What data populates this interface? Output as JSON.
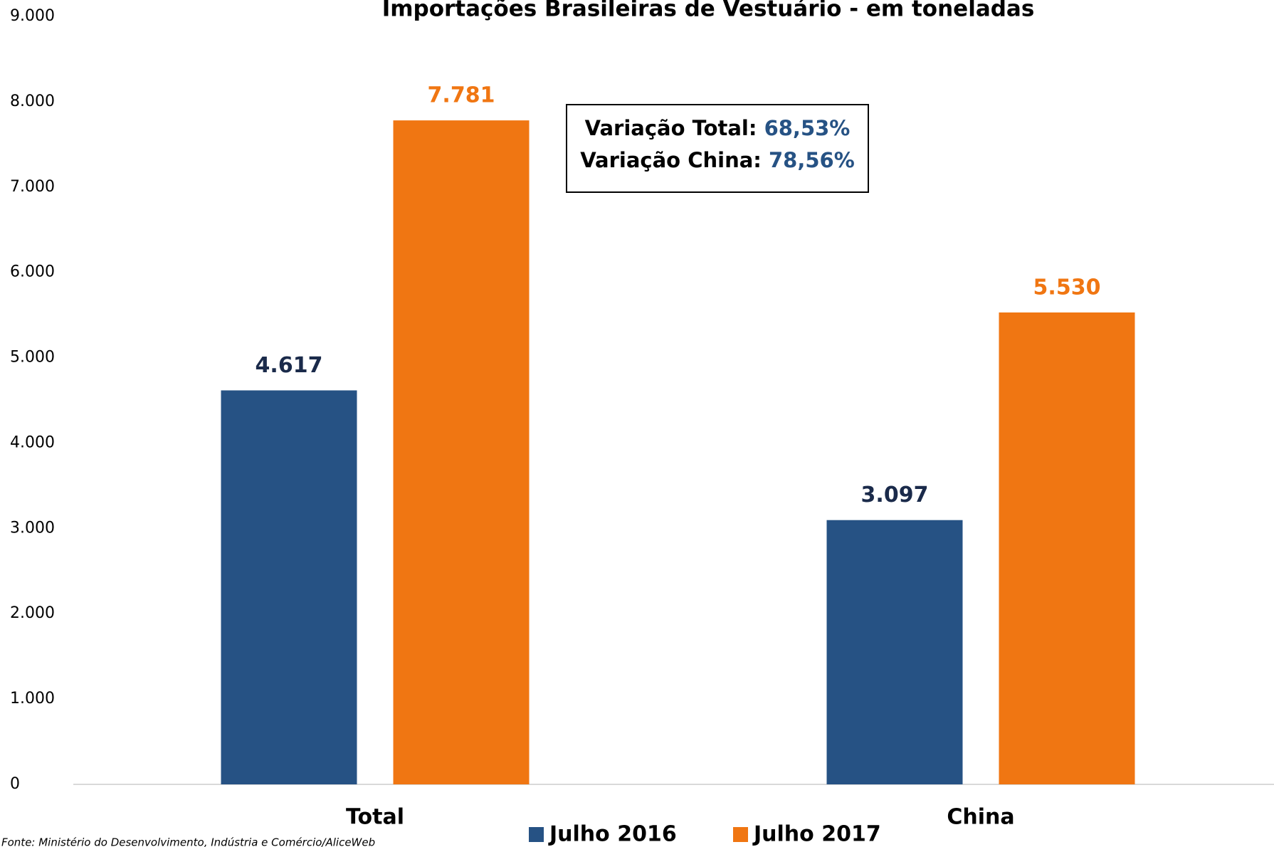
{
  "chart_data": {
    "type": "bar",
    "title": "Importações Brasileiras de Vestuário - em toneladas",
    "categories": [
      "Total",
      "China"
    ],
    "series": [
      {
        "name": "Julho 2016",
        "color": "#265284",
        "label_color": "#1a2a4a",
        "values": [
          4617,
          3097
        ],
        "value_labels": [
          "4.617",
          "3.097"
        ]
      },
      {
        "name": "Julho 2017",
        "color": "#f07612",
        "label_color": "#f07612",
        "values": [
          7781,
          5530
        ],
        "value_labels": [
          "7.781",
          "5.530"
        ]
      }
    ],
    "ylim": [
      0,
      9000
    ],
    "yticks": [
      0,
      {
        "value": 1000,
        "label": "1.000"
      },
      {
        "value": 2000,
        "label": "2.000"
      },
      {
        "value": 3000,
        "label": "3.000"
      },
      {
        "value": 4000,
        "label": "4.000"
      },
      {
        "value": 5000,
        "label": "5.000"
      },
      {
        "value": 6000,
        "label": "6.000"
      },
      {
        "value": 7000,
        "label": "7.000"
      },
      {
        "value": 8000,
        "label": "8.000"
      },
      {
        "value": 9000,
        "label": "9.000"
      }
    ],
    "grid": false,
    "legend": "bottom",
    "annotation": {
      "lines": [
        {
          "label": "Variação Total:",
          "value": "68,53%"
        },
        {
          "label": "Variação China:",
          "value": "78,56%"
        }
      ],
      "value_color": "#265284"
    },
    "source": "Fonte: Ministério do Desenvolvimento, Indústria e Comércio/AliceWeb"
  }
}
